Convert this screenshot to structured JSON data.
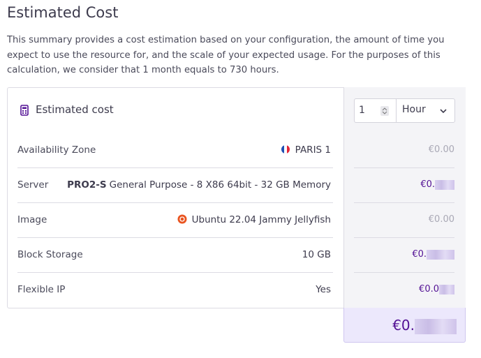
{
  "header": {
    "title": "Estimated Cost",
    "description": "This summary provides a cost estimation based on your configuration, the amount of time you expect to use the resource for, and the scale of your expected usage. For the purposes of this calculation, we consider that 1 month equals to 730 hours."
  },
  "summary": {
    "title": "Estimated cost",
    "quantity": "1",
    "unit": "Hour",
    "rows": [
      {
        "label": "Availability Zone",
        "value": "PARIS 1",
        "cost": "€0.00"
      },
      {
        "label": "Server",
        "name": "PRO2-S",
        "value": "General Purpose - 8 X86 64bit - 32 GB Memory",
        "cost": "€0."
      },
      {
        "label": "Image",
        "value": "Ubuntu 22.04 Jammy Jellyfish",
        "cost": "€0.00"
      },
      {
        "label": "Block Storage",
        "value": "10 GB",
        "cost": "€0."
      },
      {
        "label": "Flexible IP",
        "value": "Yes",
        "cost": "€0.0"
      }
    ],
    "total": "€0."
  }
}
